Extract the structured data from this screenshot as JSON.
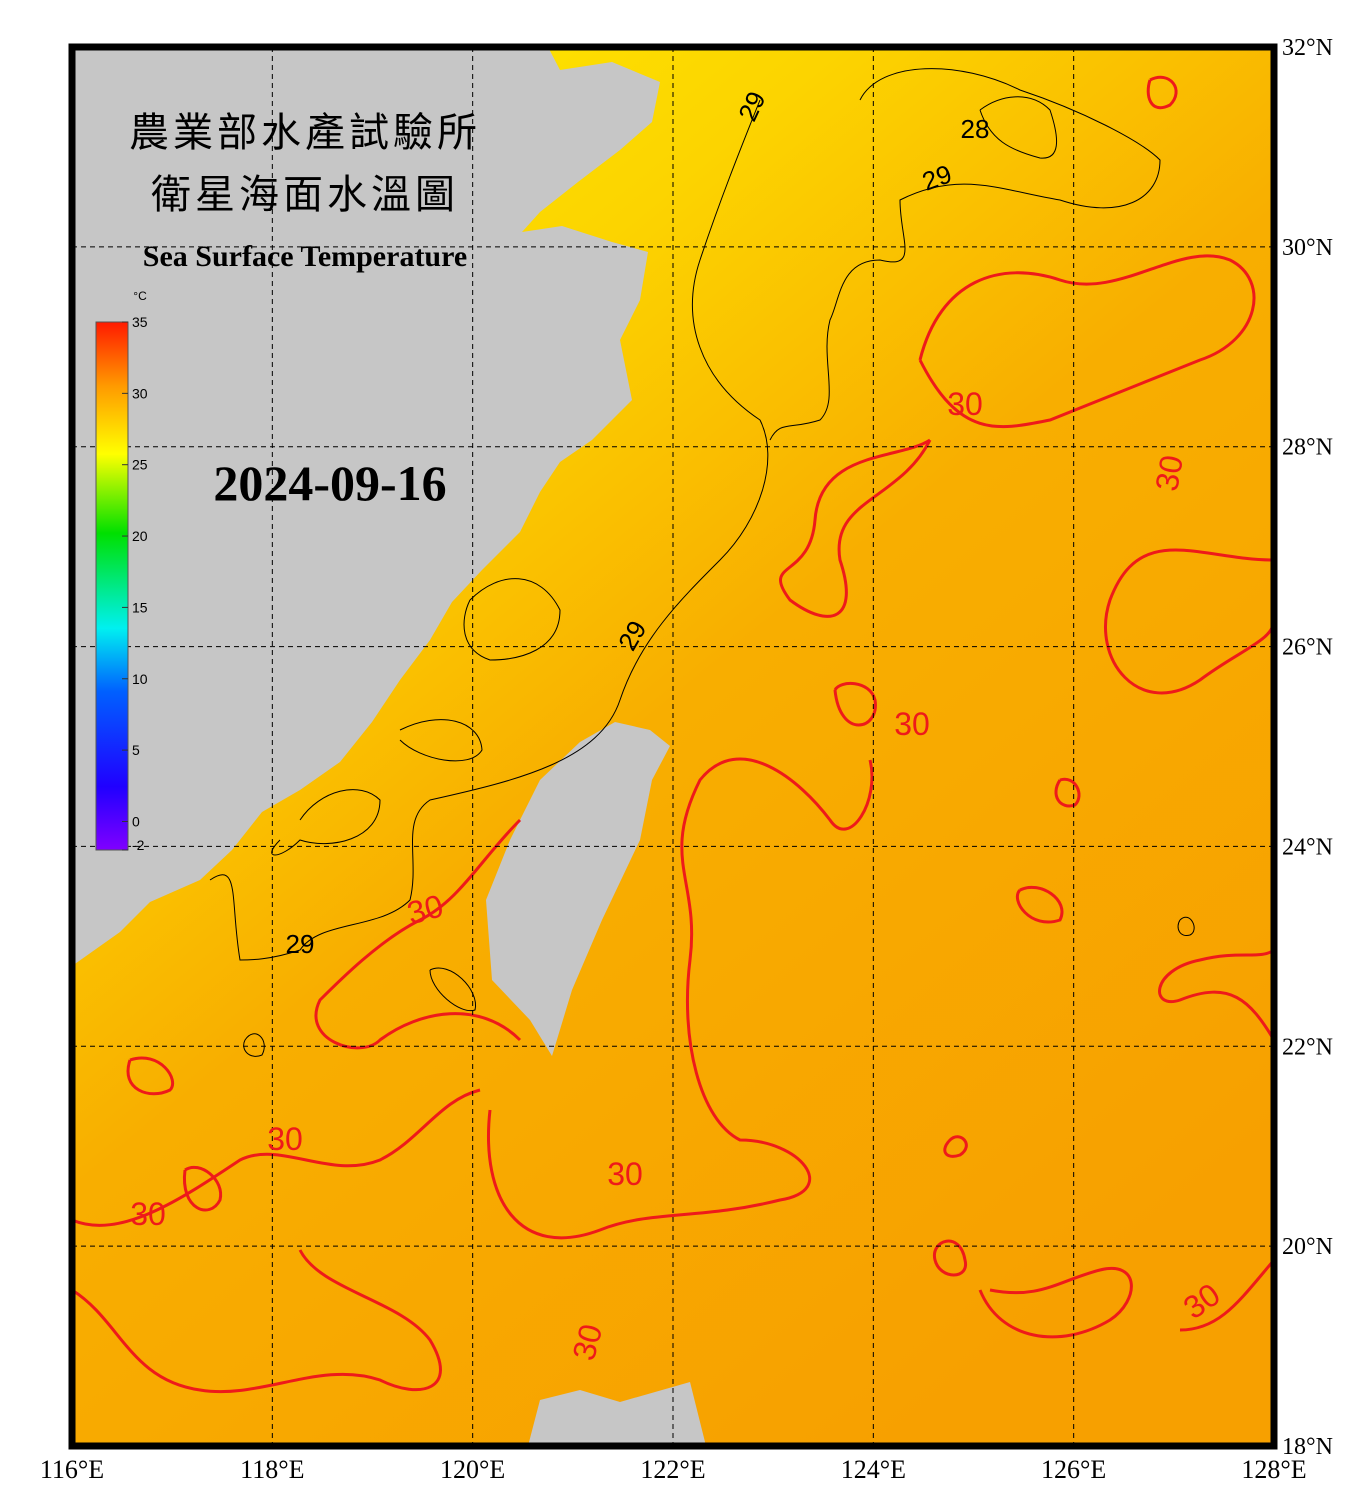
{
  "title_zh": [
    "農業部水產試驗所",
    "衛星海面水溫圖"
  ],
  "title_en": "Sea Surface Temperature",
  "date": "2024-09-16",
  "colorbar": {
    "unit": "°C",
    "range": [
      -2,
      35
    ],
    "ticks": [
      -2,
      0,
      5,
      10,
      15,
      20,
      25,
      30,
      35
    ]
  },
  "longitude": {
    "range": [
      116,
      128
    ],
    "ticks": [
      {
        "value": 116,
        "label": "116°E"
      },
      {
        "value": 118,
        "label": "118°E"
      },
      {
        "value": 120,
        "label": "120°E"
      },
      {
        "value": 122,
        "label": "122°E"
      },
      {
        "value": 124,
        "label": "124°E"
      },
      {
        "value": 126,
        "label": "126°E"
      },
      {
        "value": 128,
        "label": "128°E"
      }
    ]
  },
  "latitude": {
    "range": [
      18,
      32
    ],
    "ticks": [
      {
        "value": 18,
        "label": "18°N"
      },
      {
        "value": 20,
        "label": "20°N"
      },
      {
        "value": 22,
        "label": "22°N"
      },
      {
        "value": 24,
        "label": "24°N"
      },
      {
        "value": 26,
        "label": "26°N"
      },
      {
        "value": 28,
        "label": "28°N"
      },
      {
        "value": 30,
        "label": "30°N"
      },
      {
        "value": 32,
        "label": "32°N"
      }
    ]
  },
  "contour_labels": [
    29,
    28,
    29,
    29,
    29,
    30,
    30,
    30,
    30,
    30,
    30,
    30,
    30,
    30
  ]
}
